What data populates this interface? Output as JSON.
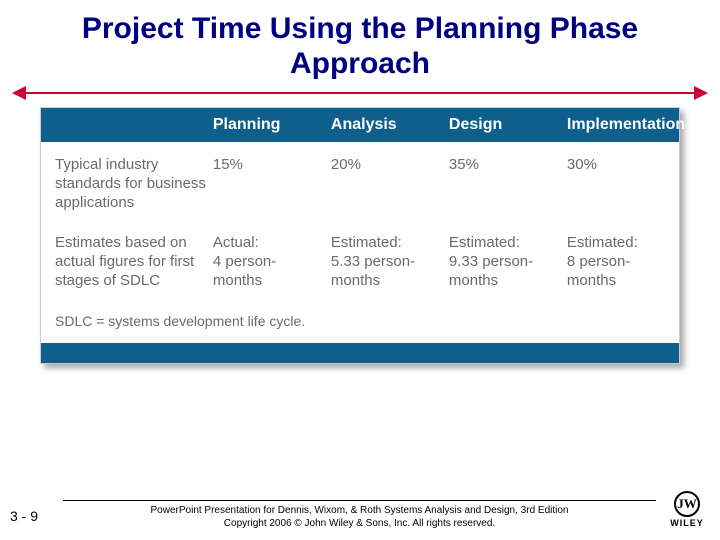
{
  "title": "Project Time Using the Planning Phase Approach",
  "table": {
    "header_bg": "#0f5f8c",
    "header_fg": "#ffffff",
    "body_fg": "#6a6a6a",
    "columns": [
      "Planning",
      "Analysis",
      "Design",
      "Implementation"
    ],
    "rows": [
      {
        "label": "Typical industry standards for business applications",
        "cells": [
          "15%",
          "20%",
          "35%",
          "30%"
        ]
      },
      {
        "label": "Estimates based on actual figures for first stages of SDLC",
        "cells": [
          {
            "head": "Actual:",
            "val": "4 person-months"
          },
          {
            "head": "Estimated:",
            "val": "5.33 person-months"
          },
          {
            "head": "Estimated:",
            "val": "9.33 person-months"
          },
          {
            "head": "Estimated:",
            "val": "8 person-months"
          }
        ]
      }
    ],
    "footnote": "SDLC = systems development life cycle."
  },
  "footer": {
    "page": "3 - 9",
    "line1": "PowerPoint Presentation for Dennis, Wixom, & Roth Systems Analysis and Design, 3rd Edition",
    "line2": "Copyright 2006 © John Wiley & Sons, Inc. All rights reserved.",
    "publisher_mark": "JW",
    "publisher_name": "WILEY"
  }
}
